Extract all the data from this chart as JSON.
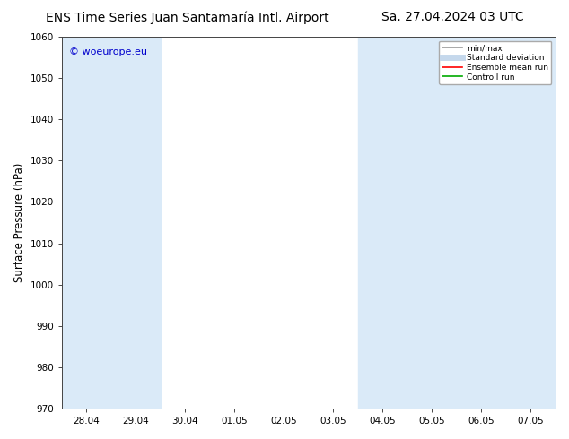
{
  "title_left": "ENS Time Series Juan Santamaría Intl. Airport",
  "title_right": "Sa. 27.04.2024 03 UTC",
  "ylabel": "Surface Pressure (hPa)",
  "ylim": [
    970,
    1060
  ],
  "yticks": [
    970,
    980,
    990,
    1000,
    1010,
    1020,
    1030,
    1040,
    1050,
    1060
  ],
  "xtick_labels": [
    "28.04",
    "29.04",
    "30.04",
    "01.05",
    "02.05",
    "03.05",
    "04.05",
    "05.05",
    "06.05",
    "07.05"
  ],
  "watermark": "© woeurope.eu",
  "watermark_color": "#0000cc",
  "bg_color": "#ffffff",
  "plot_bg_color": "#ffffff",
  "shaded_color": "#daeaf8",
  "legend_items": [
    {
      "label": "min/max",
      "color": "#999999",
      "lw": 1.2,
      "style": "solid"
    },
    {
      "label": "Standard deviation",
      "color": "#c5d8ec",
      "lw": 5,
      "style": "solid"
    },
    {
      "label": "Ensemble mean run",
      "color": "#ff0000",
      "lw": 1.2,
      "style": "solid"
    },
    {
      "label": "Controll run",
      "color": "#00aa00",
      "lw": 1.2,
      "style": "solid"
    }
  ],
  "title_fontsize": 10,
  "tick_fontsize": 7.5,
  "ylabel_fontsize": 8.5,
  "watermark_fontsize": 8
}
